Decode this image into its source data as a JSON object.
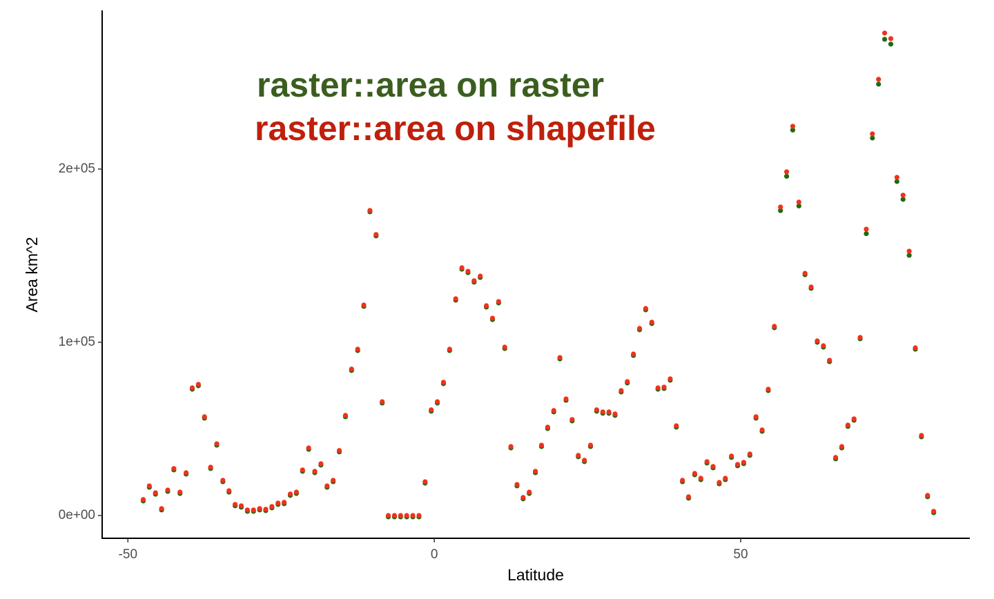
{
  "chart_data": {
    "type": "scatter",
    "x_label": "Latitude",
    "y_label": "Area km^2",
    "xlim": [
      -54.2,
      87.4
    ],
    "ylim": [
      -13150,
      291600
    ],
    "xticks": [
      -50,
      0,
      50
    ],
    "yticks": [
      {
        "value": 0,
        "label": "0e+00"
      },
      {
        "value": 100000,
        "label": "1e+05"
      },
      {
        "value": 200000,
        "label": "2e+05"
      }
    ],
    "grid": false,
    "x": [
      -47.5,
      -46.5,
      -45.5,
      -44.5,
      -43.5,
      -42.5,
      -41.5,
      -40.5,
      -39.5,
      -38.5,
      -37.5,
      -36.5,
      -35.5,
      -34.5,
      -33.5,
      -32.5,
      -31.5,
      -30.5,
      -29.5,
      -28.5,
      -27.5,
      -26.5,
      -25.5,
      -24.5,
      -23.5,
      -22.5,
      -21.5,
      -20.5,
      -19.5,
      -18.5,
      -17.5,
      -16.5,
      -15.5,
      -14.5,
      -13.5,
      -12.5,
      -11.5,
      -10.5,
      -9.5,
      -8.5,
      -7.5,
      -6.5,
      -5.5,
      -4.5,
      -3.5,
      -2.5,
      -1.5,
      -0.5,
      0.5,
      1.5,
      2.5,
      3.5,
      4.5,
      5.5,
      6.5,
      7.5,
      8.5,
      9.5,
      10.5,
      11.5,
      12.5,
      13.5,
      14.5,
      15.5,
      16.5,
      17.5,
      18.5,
      19.5,
      20.5,
      21.5,
      22.5,
      23.5,
      24.5,
      25.5,
      26.5,
      27.5,
      28.5,
      29.5,
      30.5,
      31.5,
      32.5,
      33.5,
      34.5,
      35.5,
      36.5,
      37.5,
      38.5,
      39.5,
      40.5,
      41.5,
      42.5,
      43.5,
      44.5,
      45.5,
      46.5,
      47.5,
      48.5,
      49.5,
      50.5,
      51.5,
      52.5,
      53.5,
      54.5,
      55.5,
      56.5,
      57.5,
      58.5,
      59.5,
      60.5,
      61.5,
      62.5,
      63.5,
      64.5,
      65.5,
      66.5,
      67.5,
      68.5,
      69.5,
      70.5,
      71.5,
      72.5,
      73.5,
      74.5,
      75.5,
      76.5,
      77.5,
      78.5,
      79.5,
      80.5,
      81.5
    ],
    "series": [
      {
        "name": "raster::area on raster",
        "color": "#3b5e1f",
        "marker_color": "#1f6a12",
        "values": [
          9200,
          17100,
          13100,
          4000,
          14700,
          27100,
          13500,
          24700,
          73700,
          75700,
          57000,
          27900,
          41400,
          20300,
          14300,
          6400,
          5600,
          3200,
          3200,
          4000,
          3600,
          5200,
          7200,
          7600,
          12400,
          13500,
          26300,
          39000,
          25500,
          29900,
          17100,
          20300,
          37500,
          57800,
          84500,
          96000,
          121500,
          176100,
          162200,
          65700,
          0,
          0,
          0,
          0,
          0,
          0,
          19500,
          61000,
          65700,
          76900,
          96000,
          125100,
          143000,
          141000,
          135500,
          138200,
          121100,
          113900,
          123500,
          97200,
          39800,
          17900,
          10400,
          13500,
          25500,
          40600,
          51000,
          60600,
          91200,
          67300,
          55400,
          34700,
          31900,
          40600,
          61000,
          59800,
          59800,
          58600,
          72100,
          77300,
          93200,
          108000,
          119500,
          111600,
          73700,
          74100,
          78900,
          51800,
          20300,
          10800,
          24300,
          21500,
          31100,
          28300,
          19100,
          21500,
          34300,
          29500,
          30700,
          35500,
          57000,
          49400,
          72900,
          109200,
          176800,
          196600,
          223300,
          179500,
          139800,
          131900,
          100800,
          98000,
          89600,
          33500,
          39800,
          52200,
          55800,
          102800,
          163500,
          218700,
          249800,
          275700,
          272900,
          193600,
          183300,
          151000,
          96800,
          46200,
          11600,
          2400
        ]
      },
      {
        "name": "raster::area on shapefile",
        "color": "#bf200c",
        "marker_color": "#f0321c",
        "values": [
          9200,
          17100,
          13100,
          4000,
          14700,
          27100,
          13500,
          24700,
          73700,
          75700,
          57000,
          27900,
          41400,
          20300,
          14300,
          6400,
          5600,
          3200,
          3200,
          4000,
          3600,
          5200,
          7200,
          7600,
          12400,
          13500,
          26300,
          39000,
          25500,
          29900,
          17100,
          20300,
          37500,
          57800,
          84500,
          96000,
          121500,
          176100,
          162200,
          65700,
          0,
          0,
          0,
          0,
          0,
          0,
          19500,
          61000,
          65700,
          76900,
          96000,
          125100,
          143000,
          141000,
          135500,
          138200,
          121100,
          113900,
          123500,
          97200,
          39800,
          17900,
          10400,
          13500,
          25500,
          40600,
          51000,
          60600,
          91200,
          67300,
          55400,
          34700,
          31900,
          40600,
          61000,
          59800,
          59800,
          58600,
          72100,
          77300,
          93200,
          108000,
          119500,
          111600,
          73700,
          74100,
          78900,
          51800,
          20300,
          10800,
          24300,
          21500,
          31100,
          28300,
          19100,
          21500,
          34300,
          29500,
          30700,
          35500,
          57000,
          49400,
          72900,
          109200,
          178100,
          198400,
          224700,
          180900,
          139800,
          131900,
          100800,
          98000,
          89600,
          33500,
          39800,
          52200,
          55800,
          102800,
          165300,
          220300,
          251800,
          278500,
          275300,
          195200,
          184900,
          152600,
          96800,
          46200,
          11600,
          2400
        ]
      }
    ]
  }
}
